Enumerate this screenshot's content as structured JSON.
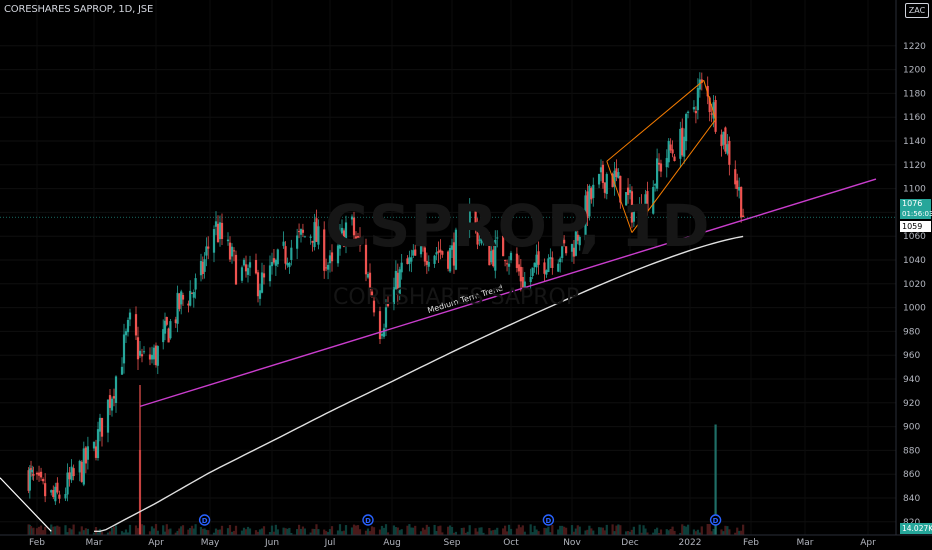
{
  "chart_title": "CORESHARES SAPROP, 1D, JSE",
  "watermark": {
    "symbol": "CSPROP, 1D",
    "name": "CORESHARES SAPROP"
  },
  "currency_badge": "ZAC",
  "colors": {
    "up": "#26a69a",
    "down": "#ef5350",
    "trend": "#c93dcc",
    "channel": "#f57c00",
    "ma": "#e0e0e0",
    "background": "#000000"
  },
  "price_labels": {
    "last": "1076",
    "countdown": "01:56:03",
    "ma_value": "1059",
    "volume": "14.027K"
  },
  "chart_data": {
    "type": "candlestick",
    "x_axis": {
      "labels": [
        "Feb",
        "Mar",
        "Apr",
        "May",
        "Jun",
        "Jul",
        "Aug",
        "Sep",
        "Oct",
        "Nov",
        "Dec",
        "2022",
        "Feb",
        "Mar",
        "Apr"
      ]
    },
    "y_axis": {
      "ticks": [
        820,
        840,
        860,
        880,
        900,
        920,
        940,
        960,
        980,
        1000,
        1020,
        1040,
        1060,
        1080,
        1100,
        1120,
        1140,
        1160,
        1180,
        1200,
        1220
      ],
      "range": [
        800,
        1230
      ]
    },
    "close_path": [
      [
        "2021-01-25",
        860
      ],
      [
        "2021-02-01",
        848
      ],
      [
        "2021-02-10",
        838
      ],
      [
        "2021-02-20",
        858
      ],
      [
        "2021-03-01",
        880
      ],
      [
        "2021-03-10",
        930
      ],
      [
        "2021-03-19",
        985
      ],
      [
        "2021-03-25",
        955
      ],
      [
        "2021-04-01",
        960
      ],
      [
        "2021-04-15",
        1005
      ],
      [
        "2021-04-25",
        1020
      ],
      [
        "2021-05-03",
        1070
      ],
      [
        "2021-05-15",
        1030
      ],
      [
        "2021-05-28",
        1020
      ],
      [
        "2021-06-10",
        1050
      ],
      [
        "2021-06-22",
        1065
      ],
      [
        "2021-07-02",
        1030
      ],
      [
        "2021-07-10",
        1075
      ],
      [
        "2021-07-18",
        1040
      ],
      [
        "2021-07-26",
        985
      ],
      [
        "2021-08-06",
        1030
      ],
      [
        "2021-08-20",
        1050
      ],
      [
        "2021-09-01",
        1045
      ],
      [
        "2021-09-10",
        1080
      ],
      [
        "2021-09-18",
        1045
      ],
      [
        "2021-09-28",
        1050
      ],
      [
        "2021-10-08",
        1020
      ],
      [
        "2021-10-20",
        1045
      ],
      [
        "2021-11-01",
        1050
      ],
      [
        "2021-11-10",
        1090
      ],
      [
        "2021-11-20",
        1115
      ],
      [
        "2021-11-28",
        1095
      ],
      [
        "2021-12-05",
        1075
      ],
      [
        "2021-12-18",
        1125
      ],
      [
        "2021-12-28",
        1140
      ],
      [
        "2022-01-06",
        1185
      ],
      [
        "2022-01-12",
        1170
      ],
      [
        "2022-01-18",
        1145
      ],
      [
        "2022-01-24",
        1110
      ],
      [
        "2022-01-29",
        1076
      ]
    ],
    "annotations": [
      {
        "type": "trendline",
        "label": "Medium Term Trend",
        "from": [
          "2021-03-24",
          917
        ],
        "to": [
          "2022-04-05",
          1108
        ]
      },
      {
        "type": "channel",
        "upper": [
          [
            "2021-11-19",
            1123
          ],
          [
            "2022-01-08",
            1191
          ]
        ],
        "lower": [
          [
            "2021-12-02",
            1063
          ],
          [
            "2022-01-14",
            1158
          ]
        ]
      },
      {
        "type": "moving_average"
      }
    ],
    "volume_spikes": [
      [
        "2021-03-24",
        0.5
      ],
      [
        "2022-01-14",
        0.65
      ]
    ],
    "dividend_markers": [
      "2021-04-28",
      "2021-07-20",
      "2021-10-20",
      "2022-01-14"
    ]
  }
}
